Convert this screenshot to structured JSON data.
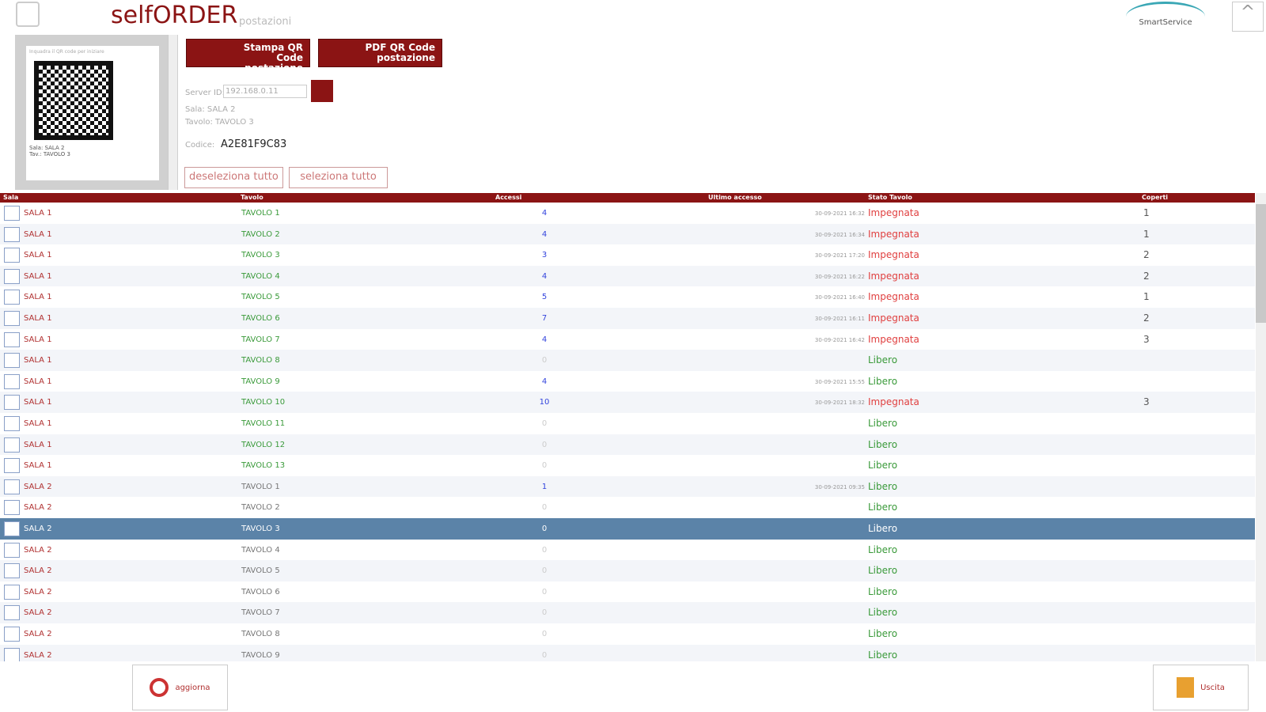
{
  "header": {
    "title": "selfORDER",
    "subtitle": "postazioni",
    "logo": "SmartService"
  },
  "qr_card": {
    "caption": "Inquadra il QR code per iniziare",
    "sala_label": "Sala:",
    "sala": "SALA 2",
    "tavolo_label": "Tav.:",
    "tavolo": "TAVOLO 3"
  },
  "actions": {
    "print_qr": "Stampa QR Code postazione",
    "pdf_qr": "PDF QR Code postazione",
    "deselect_all": "deseleziona tutto",
    "select_all": "seleziona tutto"
  },
  "details": {
    "server_label": "Server ID:",
    "server_value": "192.168.0.11",
    "sala": "Sala: SALA 2",
    "tavolo": "Tavolo: TAVOLO 3",
    "code_label": "Codice:",
    "code": "A2E81F9C83"
  },
  "table": {
    "columns": [
      "Sala",
      "Tavolo",
      "Accessi",
      "Ultimo accesso",
      "Stato Tavolo",
      "Coperti"
    ],
    "selected_row": 15,
    "rows": [
      {
        "sala": "SALA 1",
        "tavolo": "TAVOLO 1",
        "accessi": "4",
        "ultimo": "30-09-2021 16:32",
        "stato": "Impegnata",
        "coperti": "1"
      },
      {
        "sala": "SALA 1",
        "tavolo": "TAVOLO 2",
        "accessi": "4",
        "ultimo": "30-09-2021 16:34",
        "stato": "Impegnata",
        "coperti": "1"
      },
      {
        "sala": "SALA 1",
        "tavolo": "TAVOLO 3",
        "accessi": "3",
        "ultimo": "30-09-2021 17:20",
        "stato": "Impegnata",
        "coperti": "2"
      },
      {
        "sala": "SALA 1",
        "tavolo": "TAVOLO 4",
        "accessi": "4",
        "ultimo": "30-09-2021 16:22",
        "stato": "Impegnata",
        "coperti": "2"
      },
      {
        "sala": "SALA 1",
        "tavolo": "TAVOLO 5",
        "accessi": "5",
        "ultimo": "30-09-2021 16:40",
        "stato": "Impegnata",
        "coperti": "1"
      },
      {
        "sala": "SALA 1",
        "tavolo": "TAVOLO 6",
        "accessi": "7",
        "ultimo": "30-09-2021 16:11",
        "stato": "Impegnata",
        "coperti": "2"
      },
      {
        "sala": "SALA 1",
        "tavolo": "TAVOLO 7",
        "accessi": "4",
        "ultimo": "30-09-2021 16:42",
        "stato": "Impegnata",
        "coperti": "3"
      },
      {
        "sala": "SALA 1",
        "tavolo": "TAVOLO 8",
        "accessi": "0",
        "stato": "Libero"
      },
      {
        "sala": "SALA 1",
        "tavolo": "TAVOLO 9",
        "accessi": "4",
        "ultimo": "30-09-2021 15:55",
        "stato": "Libero"
      },
      {
        "sala": "SALA 1",
        "tavolo": "TAVOLO 10",
        "accessi": "10",
        "ultimo": "30-09-2021 18:32",
        "stato": "Impegnata",
        "coperti": "3"
      },
      {
        "sala": "SALA 1",
        "tavolo": "TAVOLO 11",
        "accessi": "0",
        "stato": "Libero"
      },
      {
        "sala": "SALA 1",
        "tavolo": "TAVOLO 12",
        "accessi": "0",
        "stato": "Libero"
      },
      {
        "sala": "SALA 1",
        "tavolo": "TAVOLO 13",
        "accessi": "0",
        "stato": "Libero"
      },
      {
        "sala": "SALA 2",
        "tavolo": "TAVOLO 1",
        "accessi": "1",
        "ultimo": "30-09-2021 09:35",
        "stato": "Libero"
      },
      {
        "sala": "SALA 2",
        "tavolo": "TAVOLO 2",
        "accessi": "0",
        "stato": "Libero"
      },
      {
        "sala": "SALA 2",
        "tavolo": "TAVOLO 3",
        "accessi": "0",
        "stato": "Libero"
      },
      {
        "sala": "SALA 2",
        "tavolo": "TAVOLO 4",
        "accessi": "0",
        "stato": "Libero"
      },
      {
        "sala": "SALA 2",
        "tavolo": "TAVOLO 5",
        "accessi": "0",
        "stato": "Libero"
      },
      {
        "sala": "SALA 2",
        "tavolo": "TAVOLO 6",
        "accessi": "0",
        "stato": "Libero"
      },
      {
        "sala": "SALA 2",
        "tavolo": "TAVOLO 7",
        "accessi": "0",
        "stato": "Libero"
      },
      {
        "sala": "SALA 2",
        "tavolo": "TAVOLO 8",
        "accessi": "0",
        "stato": "Libero"
      },
      {
        "sala": "SALA 2",
        "tavolo": "TAVOLO 9",
        "accessi": "0",
        "stato": "Libero"
      }
    ]
  },
  "footer": {
    "refresh": "aggiorna",
    "exit": "Uscita"
  }
}
